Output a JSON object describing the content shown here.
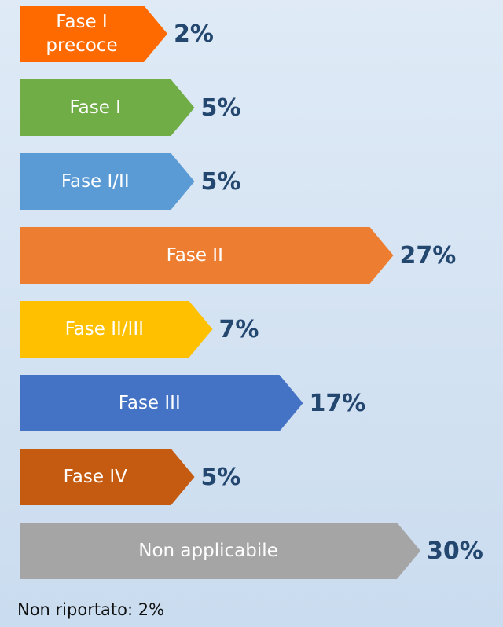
{
  "chart_data": {
    "type": "arrow-bar",
    "categories": [
      "Fase I\nprecoce",
      "Fase I",
      "Fase I/II",
      "Fase II",
      "Fase II/III",
      "Fase III",
      "Fase IV",
      "Non applicabile"
    ],
    "values": [
      2,
      5,
      5,
      27,
      7,
      17,
      5,
      30
    ],
    "value_labels": [
      "2%",
      "5%",
      "5%",
      "27%",
      "7%",
      "17%",
      "5%",
      "30%"
    ],
    "colors": [
      "#ff6a00",
      "#70ad47",
      "#5b9bd5",
      "#ed7d31",
      "#ffc000",
      "#4472c4",
      "#c55a11",
      "#a5a5a5"
    ],
    "annotation": "Non riportato: 2%"
  }
}
